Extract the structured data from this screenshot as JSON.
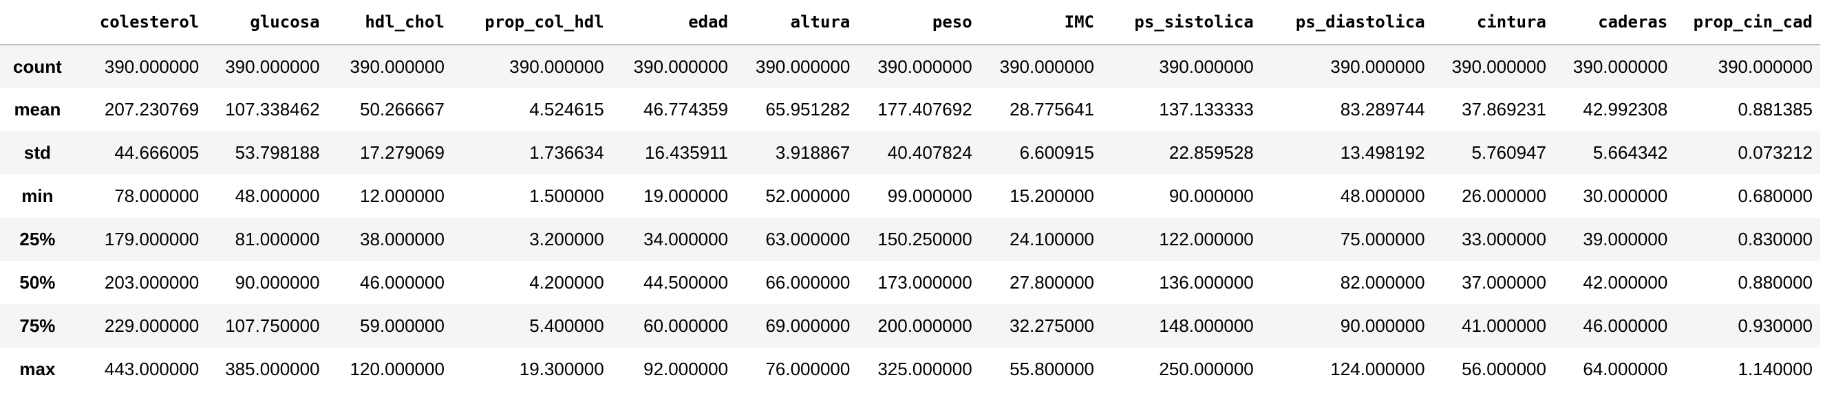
{
  "table": {
    "index_header": "",
    "columns": [
      "colesterol",
      "glucosa",
      "hdl_chol",
      "prop_col_hdl",
      "edad",
      "altura",
      "peso",
      "IMC",
      "ps_sistolica",
      "ps_diastolica",
      "cintura",
      "caderas",
      "prop_cin_cad"
    ],
    "rows": [
      {
        "label": "count",
        "values": [
          "390.000000",
          "390.000000",
          "390.000000",
          "390.000000",
          "390.000000",
          "390.000000",
          "390.000000",
          "390.000000",
          "390.000000",
          "390.000000",
          "390.000000",
          "390.000000",
          "390.000000"
        ]
      },
      {
        "label": "mean",
        "values": [
          "207.230769",
          "107.338462",
          "50.266667",
          "4.524615",
          "46.774359",
          "65.951282",
          "177.407692",
          "28.775641",
          "137.133333",
          "83.289744",
          "37.869231",
          "42.992308",
          "0.881385"
        ]
      },
      {
        "label": "std",
        "values": [
          "44.666005",
          "53.798188",
          "17.279069",
          "1.736634",
          "16.435911",
          "3.918867",
          "40.407824",
          "6.600915",
          "22.859528",
          "13.498192",
          "5.760947",
          "5.664342",
          "0.073212"
        ]
      },
      {
        "label": "min",
        "values": [
          "78.000000",
          "48.000000",
          "12.000000",
          "1.500000",
          "19.000000",
          "52.000000",
          "99.000000",
          "15.200000",
          "90.000000",
          "48.000000",
          "26.000000",
          "30.000000",
          "0.680000"
        ]
      },
      {
        "label": "25%",
        "values": [
          "179.000000",
          "81.000000",
          "38.000000",
          "3.200000",
          "34.000000",
          "63.000000",
          "150.250000",
          "24.100000",
          "122.000000",
          "75.000000",
          "33.000000",
          "39.000000",
          "0.830000"
        ]
      },
      {
        "label": "50%",
        "values": [
          "203.000000",
          "90.000000",
          "46.000000",
          "4.200000",
          "44.500000",
          "66.000000",
          "173.000000",
          "27.800000",
          "136.000000",
          "82.000000",
          "37.000000",
          "42.000000",
          "0.880000"
        ]
      },
      {
        "label": "75%",
        "values": [
          "229.000000",
          "107.750000",
          "59.000000",
          "5.400000",
          "60.000000",
          "69.000000",
          "200.000000",
          "32.275000",
          "148.000000",
          "90.000000",
          "41.000000",
          "46.000000",
          "0.930000"
        ]
      },
      {
        "label": "max",
        "values": [
          "443.000000",
          "385.000000",
          "120.000000",
          "19.300000",
          "92.000000",
          "76.000000",
          "325.000000",
          "55.800000",
          "250.000000",
          "124.000000",
          "56.000000",
          "64.000000",
          "1.140000"
        ]
      }
    ]
  },
  "colors": {
    "stripe": "#f5f5f5",
    "background": "#ffffff",
    "header_rule": "#bdbdbd",
    "text": "#000000"
  }
}
